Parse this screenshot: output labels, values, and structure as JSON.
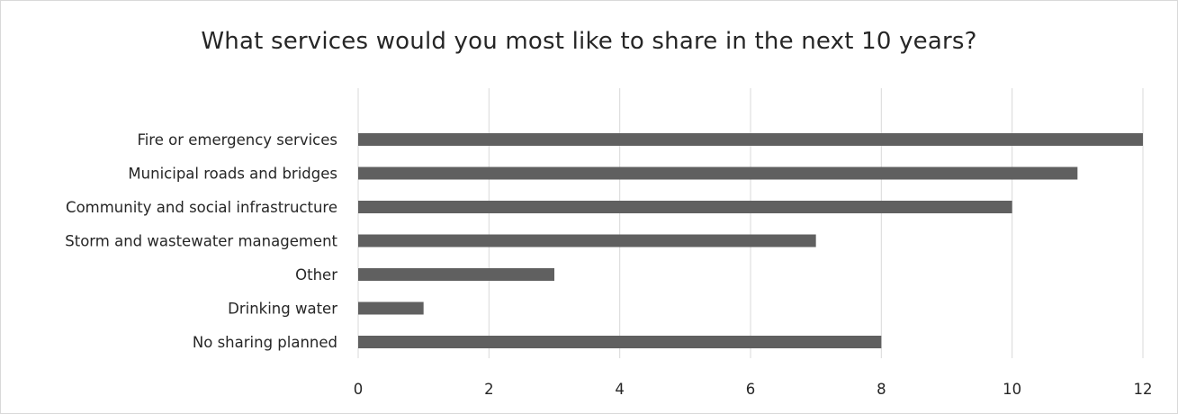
{
  "chart_data": {
    "type": "bar",
    "orientation": "horizontal",
    "title": "What services would you most like to share in the next 10 years?",
    "categories": [
      "Fire or emergency services",
      "Municipal roads and bridges",
      "Community and social infrastructure",
      "Storm and wastewater management",
      "Other",
      "Drinking water",
      "No sharing planned"
    ],
    "values": [
      12,
      11,
      10,
      7,
      3,
      1,
      8
    ],
    "xlim": [
      0,
      12
    ],
    "x_ticks": [
      0,
      2,
      4,
      6,
      8,
      10,
      12
    ],
    "grid": true,
    "legend": "none",
    "colors": {
      "bar": "#606060",
      "grid": "#d9d9d9",
      "text": "#262626",
      "border": "#d9d9d9"
    }
  }
}
